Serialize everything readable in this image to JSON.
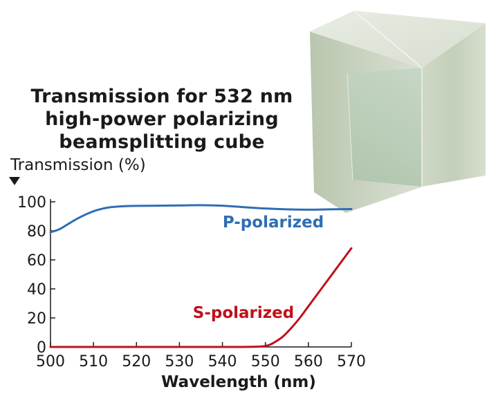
{
  "title_lines": [
    "Transmission for 532 nm",
    "high-power polarizing",
    "beamsplitting cube"
  ],
  "chart_data": {
    "type": "line",
    "title": "Transmission for 532 nm high-power polarizing beamsplitting cube",
    "xlabel": "Wavelength (nm)",
    "ylabel": "Transmission (%)",
    "xlim": [
      500,
      570
    ],
    "ylim": [
      0,
      100
    ],
    "xticks": [
      500,
      510,
      520,
      530,
      540,
      550,
      560,
      570
    ],
    "yticks": [
      0,
      20,
      40,
      60,
      80,
      100
    ],
    "grid": false,
    "series": [
      {
        "name": "P-polarized",
        "color": "#2f6db5",
        "x": [
          500,
          502,
          504,
          506,
          508,
          510,
          512,
          514,
          516,
          518,
          520,
          525,
          530,
          535,
          540,
          545,
          550,
          555,
          560,
          565,
          570
        ],
        "y": [
          79,
          81,
          84.5,
          88,
          91,
          93.5,
          95.2,
          96.3,
          96.8,
          97.1,
          97.2,
          97.3,
          97.5,
          97.7,
          97.3,
          96.3,
          95.4,
          94.8,
          94.6,
          94.8,
          95.0
        ]
      },
      {
        "name": "S-polarized",
        "color": "#c0101a",
        "x": [
          500,
          510,
          520,
          530,
          540,
          545,
          549,
          550,
          551,
          552,
          554,
          556,
          558,
          560,
          562,
          564,
          566,
          568,
          570
        ],
        "y": [
          0,
          0,
          0,
          0,
          0,
          0,
          0.3,
          0.7,
          1.5,
          3,
          7,
          13,
          20,
          28,
          36,
          44,
          52,
          60,
          68
        ]
      }
    ],
    "annotations": [
      {
        "text": "P-polarized",
        "series": 0
      },
      {
        "text": "S-polarized",
        "series": 1
      }
    ]
  },
  "image": {
    "name": "beamsplitting-cube-photo"
  }
}
